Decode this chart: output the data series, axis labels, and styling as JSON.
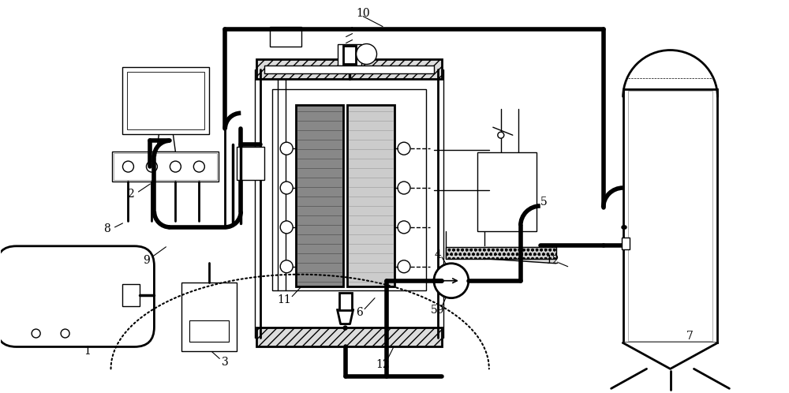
{
  "bg_color": "#ffffff",
  "lc": "#000000",
  "tk": 3.5,
  "md": 2.0,
  "tn": 1.0,
  "fig_w": 10.0,
  "fig_h": 4.98,
  "dpi": 100
}
